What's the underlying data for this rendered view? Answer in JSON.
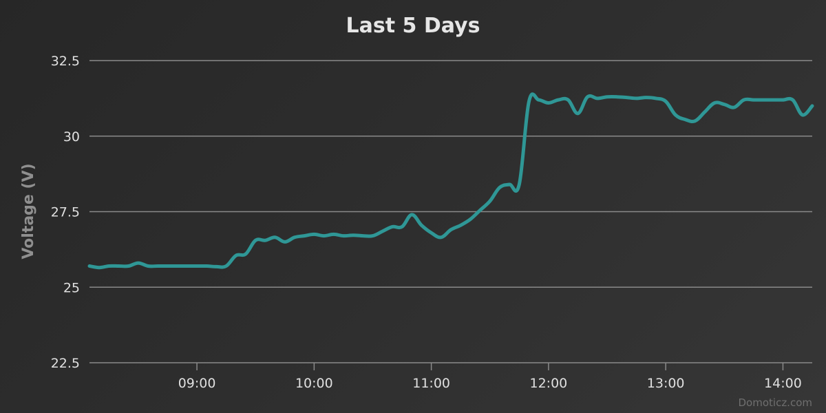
{
  "chart_data": {
    "type": "line",
    "title": "Last 5 Days",
    "ylabel": "Voltage (V)",
    "xlabel": "",
    "ylim": [
      22.5,
      32.5
    ],
    "yticks": [
      {
        "value": 22.5,
        "label": "22.5"
      },
      {
        "value": 25,
        "label": "25"
      },
      {
        "value": 27.5,
        "label": "27.5"
      },
      {
        "value": 30,
        "label": "30"
      },
      {
        "value": 32.5,
        "label": "32.5"
      }
    ],
    "xlim": [
      "08:05",
      "14:15"
    ],
    "xticks": [
      {
        "value": "09:00",
        "label": "09:00"
      },
      {
        "value": "10:00",
        "label": "10:00"
      },
      {
        "value": "11:00",
        "label": "11:00"
      },
      {
        "value": "12:00",
        "label": "12:00"
      },
      {
        "value": "13:00",
        "label": "13:00"
      },
      {
        "value": "14:00",
        "label": "14:00"
      }
    ],
    "grid": true,
    "legend": "none",
    "series_color": "#2f9796",
    "series": [
      {
        "x": [
          "08:05",
          "08:10",
          "08:15",
          "08:20",
          "08:25",
          "08:30",
          "08:35",
          "08:40",
          "08:45",
          "08:50",
          "08:55",
          "09:00",
          "09:05",
          "09:10",
          "09:15",
          "09:20",
          "09:25",
          "09:30",
          "09:35",
          "09:40",
          "09:45",
          "09:50",
          "09:55",
          "10:00",
          "10:05",
          "10:10",
          "10:15",
          "10:20",
          "10:25",
          "10:30",
          "10:35",
          "10:40",
          "10:45",
          "10:50",
          "10:55",
          "11:00",
          "11:05",
          "11:10",
          "11:15",
          "11:20",
          "11:25",
          "11:30",
          "11:35",
          "11:40",
          "11:45",
          "11:50",
          "11:55",
          "12:00",
          "12:05",
          "12:10",
          "12:15",
          "12:20",
          "12:25",
          "12:30",
          "12:35",
          "12:40",
          "12:45",
          "12:50",
          "12:55",
          "13:00",
          "13:05",
          "13:10",
          "13:15",
          "13:20",
          "13:25",
          "13:30",
          "13:35",
          "13:40",
          "13:45",
          "13:50",
          "13:55",
          "14:00",
          "14:05",
          "14:10",
          "14:15"
        ],
        "values": [
          25.7,
          25.65,
          25.7,
          25.7,
          25.7,
          25.8,
          25.7,
          25.7,
          25.7,
          25.7,
          25.7,
          25.7,
          25.7,
          25.68,
          25.7,
          26.05,
          26.1,
          26.55,
          26.55,
          26.65,
          26.5,
          26.65,
          26.7,
          26.75,
          26.7,
          26.75,
          26.7,
          26.72,
          26.7,
          26.7,
          26.85,
          27.0,
          27.0,
          27.4,
          27.05,
          26.8,
          26.65,
          26.9,
          27.05,
          27.25,
          27.55,
          27.85,
          28.3,
          28.4,
          28.4,
          31.15,
          31.2,
          31.1,
          31.2,
          31.2,
          30.75,
          31.3,
          31.25,
          31.3,
          31.3,
          31.28,
          31.25,
          31.28,
          31.25,
          31.15,
          30.7,
          30.55,
          30.5,
          30.8,
          31.1,
          31.05,
          30.95,
          31.2,
          31.2,
          31.2,
          31.2,
          31.2,
          31.2,
          30.7,
          31.0
        ]
      }
    ],
    "credit": "Domoticz.com"
  }
}
